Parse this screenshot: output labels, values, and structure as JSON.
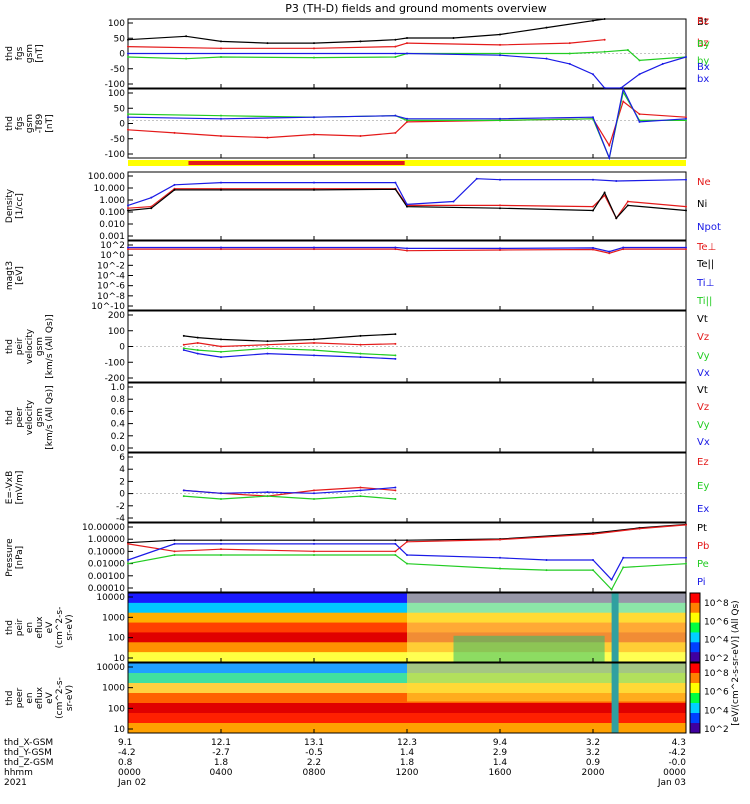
{
  "title": "P3 (TH-D) fields and ground moments overview",
  "colors": {
    "black": "#000000",
    "red": "#e41a1a",
    "green": "#22cc22",
    "blue": "#1a1ae6",
    "yellow": "#ffff00"
  },
  "chart_data": [
    {
      "type": "line",
      "name": "panel-fgs-gsm",
      "ylabel_lines": [
        "thd",
        "fgs",
        "gsm",
        "[nT]"
      ],
      "ytick_labels": [
        "100",
        "50",
        "0",
        "-50",
        "-100"
      ],
      "ylim": [
        -100,
        100
      ],
      "legend": [
        {
          "label": "Bt",
          "color": "black"
        },
        {
          "label": "bz",
          "color": "red"
        },
        {
          "label": "by",
          "color": "green"
        },
        {
          "label": "bx",
          "color": "blue"
        }
      ],
      "series": [
        {
          "name": "Bt",
          "color": "black",
          "x": [
            0,
            2.5,
            4,
            6,
            8,
            10,
            11.5,
            12,
            14,
            16,
            18,
            20,
            20.5
          ],
          "y": [
            40,
            50,
            35,
            30,
            30,
            35,
            40,
            45,
            45,
            55,
            75,
            95,
            100
          ]
        },
        {
          "name": "bz",
          "color": "red",
          "x": [
            0,
            4,
            8,
            11.5,
            12,
            16,
            19,
            20.5
          ],
          "y": [
            20,
            15,
            15,
            20,
            30,
            25,
            30,
            40
          ]
        },
        {
          "name": "by",
          "color": "green",
          "x": [
            0,
            2.5,
            4,
            8,
            11.5,
            12,
            16,
            19,
            20.5,
            21.5,
            22,
            24
          ],
          "y": [
            -10,
            -15,
            -10,
            -12,
            -10,
            0,
            0,
            0,
            5,
            10,
            -20,
            -10
          ]
        },
        {
          "name": "bx",
          "color": "blue",
          "x": [
            0,
            11.5,
            12,
            16,
            18,
            19,
            20,
            20.5,
            21.2,
            22,
            23,
            24
          ],
          "y": [
            0,
            0,
            0,
            -5,
            -15,
            -30,
            -60,
            -100,
            -100,
            -60,
            -30,
            -10
          ]
        }
      ]
    },
    {
      "type": "line",
      "name": "panel-fgs-gse-dip",
      "ylabel_lines": [
        "thd",
        "fgs",
        "gsm",
        "-T89",
        "[nT]"
      ],
      "ytick_labels": [
        "100",
        "50",
        "0",
        "-50",
        "-100"
      ],
      "ylim": [
        -120,
        100
      ],
      "legend": [
        {
          "label": "Bz",
          "color": "red"
        },
        {
          "label": "By",
          "color": "green"
        },
        {
          "label": "Bx",
          "color": "blue"
        }
      ],
      "series": [
        {
          "name": "Bz",
          "color": "red",
          "x": [
            0,
            2,
            4,
            6,
            8,
            10,
            11.5,
            12,
            16,
            20,
            20.7,
            21.3,
            22,
            24
          ],
          "y": [
            -30,
            -40,
            -50,
            -55,
            -45,
            -50,
            -40,
            -5,
            0,
            5,
            -80,
            60,
            20,
            10
          ]
        },
        {
          "name": "By",
          "color": "green",
          "x": [
            0,
            4,
            8,
            11.5,
            12,
            16,
            20,
            20.7,
            21.3,
            22,
            24
          ],
          "y": [
            20,
            15,
            10,
            15,
            0,
            0,
            5,
            -120,
            90,
            0,
            0
          ]
        },
        {
          "name": "Bx",
          "color": "blue",
          "x": [
            0,
            4,
            8,
            11.5,
            12,
            16,
            20,
            20.7,
            21.3,
            22,
            24
          ],
          "y": [
            10,
            5,
            10,
            15,
            5,
            5,
            10,
            -120,
            100,
            -5,
            5
          ]
        }
      ]
    },
    {
      "type": "line",
      "name": "panel-density",
      "ylabel_lines": [
        "Density",
        "[1/cc]"
      ],
      "ytick_labels": [
        "100.000",
        "10.000",
        "1.000",
        "0.100",
        "0.010",
        "0.001"
      ],
      "yscale": "log",
      "ylim": [
        0.001,
        200
      ],
      "legend": [
        {
          "label": "Ne",
          "color": "red"
        },
        {
          "label": "Ni",
          "color": "black"
        },
        {
          "label": "Npot",
          "color": "blue"
        }
      ],
      "series": [
        {
          "name": "Ne",
          "color": "red",
          "x": [
            0,
            1,
            2,
            4,
            8,
            11.5,
            12,
            16,
            20,
            20.5,
            21,
            21.5,
            24
          ],
          "y": [
            0.3,
            0.4,
            10,
            10,
            10,
            10,
            0.5,
            0.5,
            0.4,
            3,
            0.05,
            1,
            0.4
          ]
        },
        {
          "name": "Ni",
          "color": "black",
          "x": [
            0,
            1,
            2,
            4,
            8,
            11.5,
            12,
            16,
            20,
            20.5,
            21,
            21.5,
            24
          ],
          "y": [
            0.2,
            0.3,
            8,
            8,
            8,
            9,
            0.4,
            0.3,
            0.2,
            5,
            0.05,
            0.5,
            0.2
          ]
        },
        {
          "name": "Npot",
          "color": "blue",
          "x": [
            0,
            1,
            2,
            4,
            8,
            11.5,
            12,
            14,
            15,
            16,
            20,
            21,
            24
          ],
          "y": [
            0.5,
            2,
            20,
            30,
            30,
            30,
            0.6,
            1,
            60,
            50,
            50,
            40,
            50
          ]
        }
      ]
    },
    {
      "type": "line",
      "name": "panel-temperature",
      "ylabel_lines": [
        "magt3",
        "[eV]"
      ],
      "ytick_labels": [
        "10^2",
        "10^0",
        "10^-2",
        "10^-4",
        "10^-6",
        "10^-8",
        "10^-10"
      ],
      "yscale": "log",
      "ylim": [
        1e-10,
        1000
      ],
      "legend": [
        {
          "label": "Te⊥",
          "color": "red"
        },
        {
          "label": "Te||",
          "color": "black"
        },
        {
          "label": "Ti⊥",
          "color": "blue"
        },
        {
          "label": "Ti||",
          "color": "green"
        }
      ],
      "series": [
        {
          "name": "Te⊥",
          "color": "red",
          "x": [
            0,
            4,
            8,
            11.5,
            12,
            16,
            20,
            20.7,
            21.3,
            24
          ],
          "y": [
            30,
            30,
            30,
            30,
            15,
            20,
            25,
            5,
            30,
            30
          ]
        },
        {
          "name": "Ti⊥",
          "color": "blue",
          "x": [
            0,
            4,
            8,
            11.5,
            12,
            16,
            20,
            20.7,
            21.3,
            24
          ],
          "y": [
            60,
            60,
            60,
            60,
            40,
            40,
            50,
            10,
            60,
            60
          ]
        }
      ]
    },
    {
      "type": "line",
      "name": "panel-peir-velocity",
      "ylabel_lines": [
        "thd",
        "peir",
        "velocity",
        "gsm",
        "[km/s (All Qs)]"
      ],
      "ytick_labels": [
        "200",
        "100",
        "0",
        "-100",
        "-200"
      ],
      "ylim": [
        -200,
        200
      ],
      "legend": [
        {
          "label": "Vt",
          "color": "black"
        },
        {
          "label": "Vz",
          "color": "red"
        },
        {
          "label": "Vy",
          "color": "green"
        },
        {
          "label": "Vx",
          "color": "blue"
        }
      ],
      "series": [
        {
          "name": "Vt",
          "color": "black",
          "x": [
            2.4,
            3,
            4,
            6,
            8,
            10,
            11.5
          ],
          "y": [
            60,
            50,
            40,
            30,
            40,
            60,
            70
          ]
        },
        {
          "name": "Vz",
          "color": "red",
          "x": [
            2.4,
            3,
            4,
            6,
            8,
            10,
            11.5
          ],
          "y": [
            10,
            20,
            0,
            10,
            20,
            10,
            15
          ]
        },
        {
          "name": "Vy",
          "color": "green",
          "x": [
            2.4,
            3,
            4,
            6,
            8,
            10,
            11.5
          ],
          "y": [
            -10,
            -20,
            -30,
            -10,
            -20,
            -40,
            -50
          ]
        },
        {
          "name": "Vx",
          "color": "blue",
          "x": [
            2.4,
            3,
            4,
            6,
            8,
            10,
            11.5
          ],
          "y": [
            -20,
            -40,
            -60,
            -40,
            -50,
            -60,
            -70
          ]
        }
      ]
    },
    {
      "type": "line",
      "name": "panel-peer-velocity",
      "ylabel_lines": [
        "thd",
        "peer",
        "velocity",
        "gsm",
        "[km/s (All Qs)]"
      ],
      "ytick_labels": [
        "1.0",
        "0.8",
        "0.6",
        "0.4",
        "0.2",
        "0.0"
      ],
      "ylim": [
        0,
        1
      ],
      "legend": [
        {
          "label": "Vt",
          "color": "black"
        },
        {
          "label": "Vz",
          "color": "red"
        },
        {
          "label": "Vy",
          "color": "green"
        },
        {
          "label": "Vx",
          "color": "blue"
        }
      ],
      "series": []
    },
    {
      "type": "line",
      "name": "panel-efield",
      "ylabel_lines": [
        "E=-VxB",
        "[mV/m]"
      ],
      "ytick_labels": [
        "6",
        "4",
        "2",
        "0",
        "-2",
        "-4"
      ],
      "ylim": [
        -5,
        7
      ],
      "legend": [
        {
          "label": "Ez",
          "color": "red"
        },
        {
          "label": "Ey",
          "color": "green"
        },
        {
          "label": "Ex",
          "color": "blue"
        }
      ],
      "series": [
        {
          "name": "Ez",
          "color": "red",
          "x": [
            2.4,
            4,
            6,
            8,
            10,
            11.5
          ],
          "y": [
            0.5,
            0,
            -0.5,
            0.5,
            1,
            0.5
          ]
        },
        {
          "name": "Ey",
          "color": "green",
          "x": [
            2.4,
            4,
            6,
            8,
            10,
            11.5
          ],
          "y": [
            -0.5,
            -1,
            -0.5,
            -1,
            -0.5,
            -1
          ]
        },
        {
          "name": "Ex",
          "color": "blue",
          "x": [
            2.4,
            4,
            6,
            8,
            10,
            11.5
          ],
          "y": [
            0.5,
            0,
            0.2,
            0,
            0.5,
            1
          ]
        }
      ]
    },
    {
      "type": "line",
      "name": "panel-pressure",
      "ylabel_lines": [
        "Pressure",
        "[nPa]"
      ],
      "ytick_labels": [
        "10.00000",
        "1.00000",
        "0.10000",
        "0.01000",
        "0.00100",
        "0.00010"
      ],
      "yscale": "log",
      "ylim": [
        5e-05,
        20
      ],
      "legend": [
        {
          "label": "Pt",
          "color": "black"
        },
        {
          "label": "Pb",
          "color": "red"
        },
        {
          "label": "Pe",
          "color": "green"
        },
        {
          "label": "Pi",
          "color": "blue"
        }
      ],
      "series": [
        {
          "name": "Pt",
          "color": "black",
          "x": [
            0,
            2,
            4,
            8,
            11.5,
            12,
            16,
            20,
            22,
            24
          ],
          "y": [
            0.5,
            0.8,
            0.8,
            0.8,
            0.8,
            0.8,
            1,
            3,
            8,
            15
          ]
        },
        {
          "name": "Pb",
          "color": "red",
          "x": [
            0,
            2,
            4,
            8,
            11.5,
            12,
            16,
            20,
            22,
            24
          ],
          "y": [
            0.4,
            0.1,
            0.15,
            0.1,
            0.1,
            0.6,
            0.9,
            2.5,
            7,
            14
          ]
        },
        {
          "name": "Pe",
          "color": "green",
          "x": [
            0,
            2,
            4,
            8,
            11.5,
            12,
            16,
            18,
            20,
            20.8,
            21.3,
            24
          ],
          "y": [
            0.01,
            0.05,
            0.05,
            0.05,
            0.05,
            0.01,
            0.004,
            0.003,
            0.003,
            8e-05,
            0.005,
            0.01
          ]
        },
        {
          "name": "Pi",
          "color": "blue",
          "x": [
            0,
            2,
            4,
            8,
            11.5,
            12,
            16,
            18,
            20,
            20.8,
            21.3,
            24
          ],
          "y": [
            0.02,
            0.4,
            0.4,
            0.4,
            0.4,
            0.05,
            0.03,
            0.02,
            0.02,
            0.0005,
            0.03,
            0.03
          ]
        }
      ]
    },
    {
      "type": "heatmap",
      "name": "panel-peir-spec",
      "ylabel_lines": [
        "thd",
        "peir",
        "en",
        "eflux",
        "eV",
        "(cm^2-s-",
        "sr-eV)"
      ],
      "ytick_labels": [
        "10000",
        "1000",
        "100",
        "10"
      ],
      "yscale": "log",
      "ylim": [
        5,
        25000
      ]
    },
    {
      "type": "heatmap",
      "name": "panel-peer-spec",
      "ylabel_lines": [
        "thd",
        "peer",
        "en",
        "eflux",
        "eV",
        "(cm^2-s-",
        "sr-eV)"
      ],
      "ytick_labels": [
        "10000",
        "1000",
        "100",
        "10"
      ],
      "yscale": "log",
      "ylim": [
        5,
        25000
      ]
    }
  ],
  "colorbar": {
    "label": "[eV/(cm^2-s-sr-eV)] (All Qs)",
    "tick_labels": [
      "10^8",
      "10^6",
      "10^4",
      "10^2",
      "10^8",
      "10^6",
      "10^4",
      "10^2"
    ]
  },
  "xaxis": {
    "xlim": [
      0,
      24
    ],
    "rows": [
      {
        "label": "thd_X-GSM",
        "values": [
          "9.1",
          "12.1",
          "13.1",
          "12.3",
          "9.4",
          "3.2",
          "4.3"
        ]
      },
      {
        "label": "thd_Y-GSM",
        "values": [
          "-4.2",
          "-2.7",
          "-0.5",
          "1.4",
          "2.9",
          "3.2",
          "-4.2"
        ]
      },
      {
        "label": "thd_Z-GSM",
        "values": [
          "0.8",
          "1.8",
          "2.2",
          "1.8",
          "1.4",
          "0.9",
          "-0.0"
        ]
      },
      {
        "label": "hhmm",
        "values": [
          "0000",
          "0400",
          "0800",
          "1200",
          "1600",
          "2000",
          "0000"
        ]
      },
      {
        "label": "2021",
        "values": [
          "Jan 02",
          "",
          "",
          "",
          "",
          "",
          "Jan 03"
        ]
      }
    ]
  }
}
